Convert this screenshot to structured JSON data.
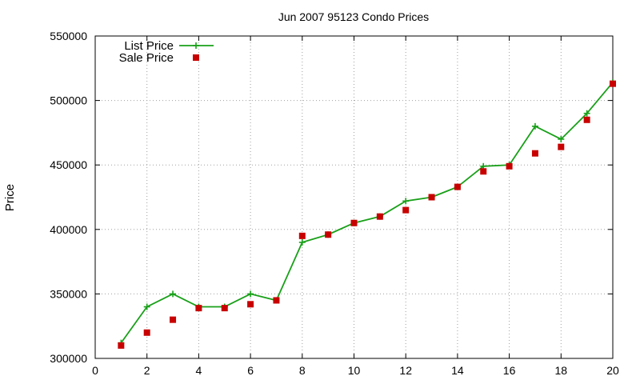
{
  "chart_data": {
    "type": "line",
    "title": "Jun 2007 95123 Condo Prices",
    "xlabel": "",
    "ylabel": "Price",
    "xlim": [
      0,
      20
    ],
    "ylim": [
      300000,
      550000
    ],
    "x_ticks": [
      0,
      2,
      4,
      6,
      8,
      10,
      12,
      14,
      16,
      18,
      20
    ],
    "y_ticks": [
      300000,
      350000,
      400000,
      450000,
      500000,
      550000
    ],
    "grid": true,
    "legend_position": "top-left",
    "series": [
      {
        "name": "List Price",
        "style": "linespoints",
        "color": "#19a019",
        "marker": "plus",
        "x": [
          1,
          2,
          3,
          4,
          5,
          6,
          7,
          8,
          9,
          10,
          11,
          12,
          13,
          14,
          15,
          16,
          17,
          18,
          19,
          20
        ],
        "y": [
          312000,
          340000,
          350000,
          340000,
          340000,
          350000,
          345000,
          390000,
          396000,
          405000,
          410000,
          422000,
          425000,
          433000,
          449000,
          450000,
          480000,
          470000,
          490000,
          514000
        ]
      },
      {
        "name": "Sale Price",
        "style": "points",
        "color": "#c80000",
        "marker": "square",
        "x": [
          1,
          2,
          3,
          4,
          5,
          6,
          7,
          8,
          9,
          10,
          11,
          12,
          13,
          14,
          15,
          16,
          17,
          18,
          19,
          20
        ],
        "y": [
          310000,
          320000,
          330000,
          339000,
          339000,
          342000,
          345000,
          395000,
          396000,
          405000,
          410000,
          415000,
          425000,
          433000,
          445000,
          449000,
          459000,
          464000,
          485000,
          513000
        ]
      }
    ]
  }
}
